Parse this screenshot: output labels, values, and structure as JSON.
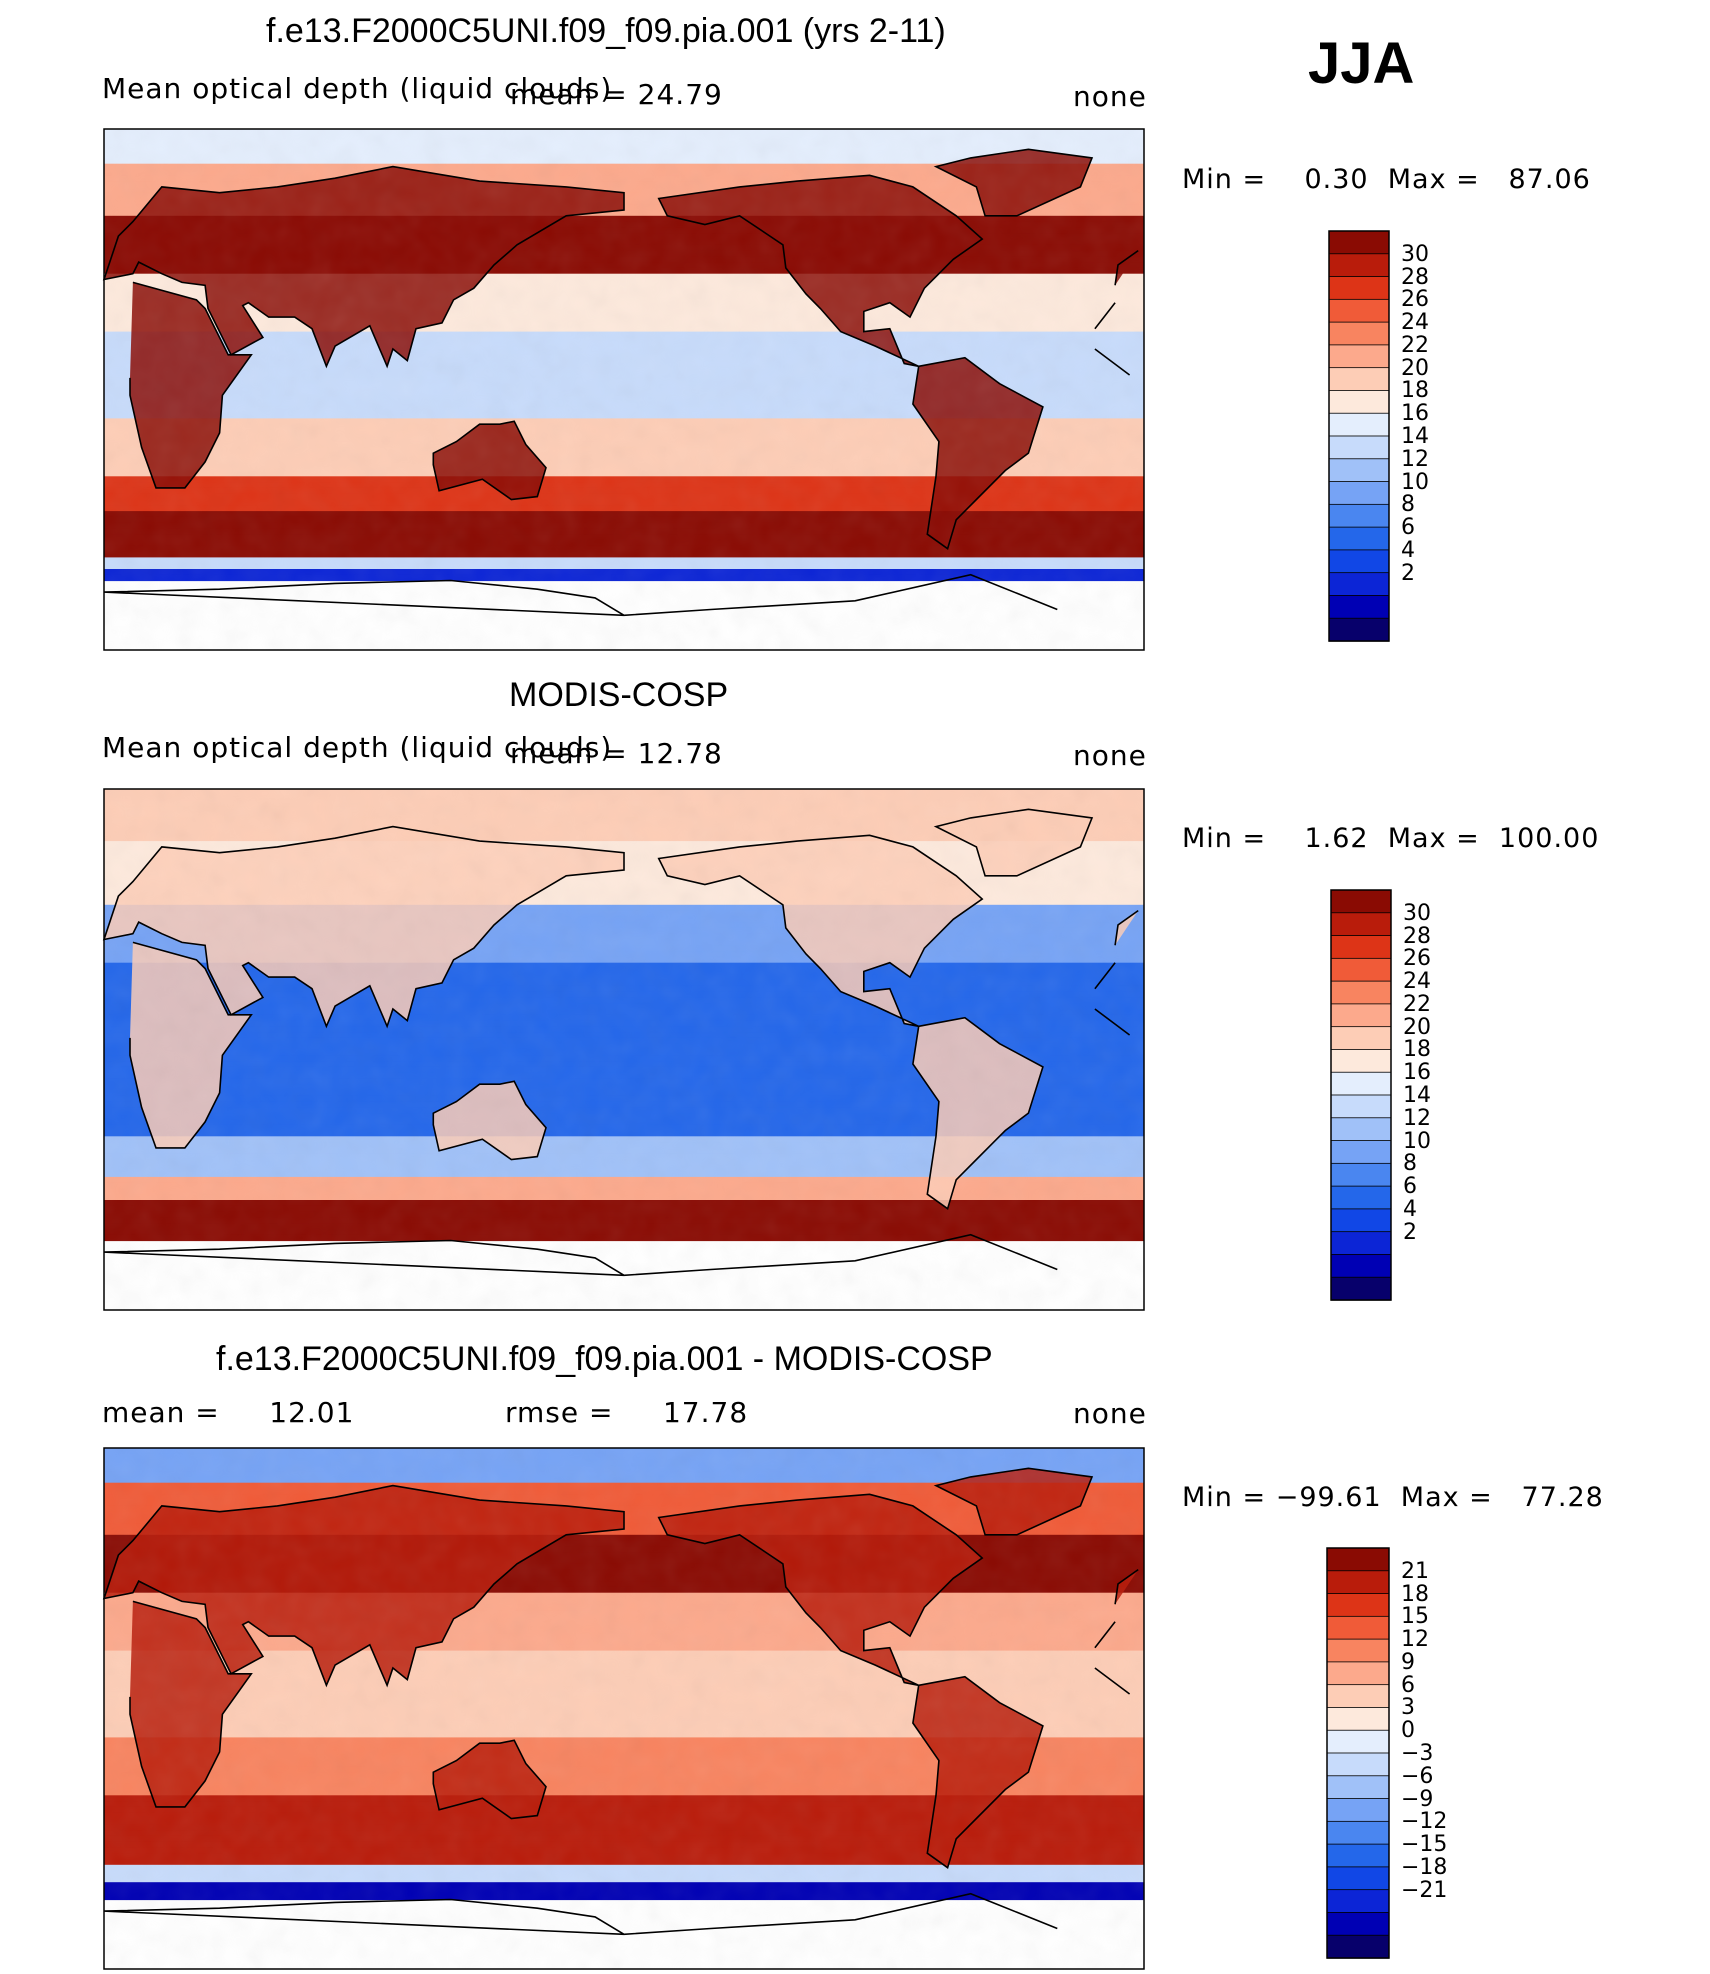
{
  "season": "JJA",
  "colors": {
    "abs_scale": [
      "#07006b",
      "#0000b4",
      "#0c25d6",
      "#1147e6",
      "#2467ea",
      "#4a86f0",
      "#76a3f5",
      "#a0c1f8",
      "#c7dbfb",
      "#e4eefd",
      "#fde9dc",
      "#fdcdb6",
      "#fca98c",
      "#f88460",
      "#f05b38",
      "#dd3417",
      "#b91c0b",
      "#8a0b03"
    ],
    "diff_scale": [
      "#07006b",
      "#0000b4",
      "#0c25d6",
      "#1147e6",
      "#2467ea",
      "#4a86f0",
      "#76a3f5",
      "#a0c1f8",
      "#c7dbfb",
      "#e4eefd",
      "#fde9dc",
      "#fdcdb6",
      "#fca98c",
      "#f88460",
      "#f05b38",
      "#dd3417",
      "#b91c0b",
      "#8a0b03"
    ],
    "land": "#000000"
  },
  "chart_data": [
    {
      "type": "heatmap",
      "title": "f.e13.F2000C5UNI.f09_f09.pia.001 (yrs 2-11)",
      "left_label": "Mean optical depth (liquid clouds)",
      "center_label": "mean = 24.79",
      "units": "none",
      "min_max": "Min =    0.30  Max =   87.06",
      "colorbar_ticks": [
        "30",
        "28",
        "26",
        "24",
        "22",
        "20",
        "18",
        "16",
        "14",
        "12",
        "10",
        "8",
        "6",
        "4",
        "2"
      ],
      "regime": "model"
    },
    {
      "type": "heatmap",
      "title": "MODIS-COSP",
      "left_label": "Mean optical depth (liquid clouds)",
      "center_label": "mean = 12.78",
      "units": "none",
      "min_max": "Min =    1.62  Max =  100.00",
      "colorbar_ticks": [
        "30",
        "28",
        "26",
        "24",
        "22",
        "20",
        "18",
        "16",
        "14",
        "12",
        "10",
        "8",
        "6",
        "4",
        "2"
      ],
      "regime": "obs"
    },
    {
      "type": "heatmap",
      "title": "f.e13.F2000C5UNI.f09_f09.pia.001 - MODIS-COSP",
      "left_label": "mean =     12.01",
      "center_label": "rmse =     17.78",
      "units": "none",
      "min_max": "Min = −99.61  Max =   77.28",
      "colorbar_ticks": [
        "21",
        "18",
        "15",
        "12",
        "9",
        "6",
        "3",
        "0",
        "−3",
        "−6",
        "−9",
        "−12",
        "−15",
        "−18",
        "−21"
      ],
      "regime": "diff"
    }
  ]
}
